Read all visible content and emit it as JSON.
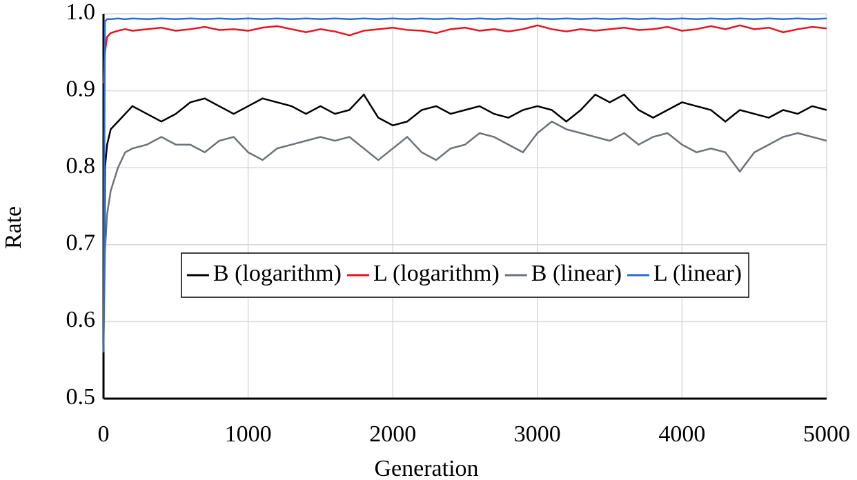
{
  "chart_data": {
    "type": "line",
    "x_label": "Generation",
    "y_label": "Rate",
    "x": [
      0,
      10,
      25,
      50,
      100,
      150,
      200,
      300,
      400,
      500,
      600,
      700,
      800,
      900,
      1000,
      1100,
      1200,
      1300,
      1400,
      1500,
      1600,
      1700,
      1800,
      1900,
      2000,
      2100,
      2200,
      2300,
      2400,
      2500,
      2600,
      2700,
      2800,
      2900,
      3000,
      3100,
      3200,
      3300,
      3400,
      3500,
      3600,
      3700,
      3800,
      3900,
      4000,
      4100,
      4200,
      4300,
      4400,
      4500,
      4600,
      4700,
      4800,
      4900,
      5000
    ],
    "series": [
      {
        "name": "B (logarithm)",
        "color": "#000000",
        "values": [
          0.56,
          0.8,
          0.83,
          0.85,
          0.86,
          0.87,
          0.88,
          0.87,
          0.86,
          0.87,
          0.885,
          0.89,
          0.88,
          0.87,
          0.88,
          0.89,
          0.885,
          0.88,
          0.87,
          0.88,
          0.87,
          0.875,
          0.895,
          0.865,
          0.855,
          0.86,
          0.875,
          0.88,
          0.87,
          0.875,
          0.88,
          0.87,
          0.865,
          0.875,
          0.88,
          0.875,
          0.86,
          0.875,
          0.895,
          0.885,
          0.895,
          0.875,
          0.865,
          0.875,
          0.885,
          0.88,
          0.875,
          0.86,
          0.875,
          0.87,
          0.865,
          0.875,
          0.87,
          0.88,
          0.875
        ]
      },
      {
        "name": "L (logarithm)",
        "color": "#e8141b",
        "values": [
          0.91,
          0.95,
          0.97,
          0.975,
          0.978,
          0.98,
          0.978,
          0.98,
          0.982,
          0.978,
          0.98,
          0.983,
          0.979,
          0.98,
          0.978,
          0.982,
          0.984,
          0.98,
          0.976,
          0.98,
          0.977,
          0.972,
          0.978,
          0.98,
          0.982,
          0.979,
          0.978,
          0.975,
          0.98,
          0.982,
          0.978,
          0.98,
          0.977,
          0.98,
          0.985,
          0.98,
          0.977,
          0.98,
          0.978,
          0.98,
          0.982,
          0.979,
          0.98,
          0.983,
          0.978,
          0.98,
          0.984,
          0.98,
          0.985,
          0.98,
          0.982,
          0.976,
          0.98,
          0.983,
          0.981
        ]
      },
      {
        "name": "B (linear)",
        "color": "#6d7178",
        "values": [
          0.56,
          0.69,
          0.74,
          0.77,
          0.8,
          0.82,
          0.825,
          0.83,
          0.84,
          0.83,
          0.83,
          0.82,
          0.835,
          0.84,
          0.82,
          0.81,
          0.825,
          0.83,
          0.835,
          0.84,
          0.835,
          0.84,
          0.825,
          0.81,
          0.825,
          0.84,
          0.82,
          0.81,
          0.825,
          0.83,
          0.845,
          0.84,
          0.83,
          0.82,
          0.845,
          0.86,
          0.85,
          0.845,
          0.84,
          0.835,
          0.845,
          0.83,
          0.84,
          0.845,
          0.83,
          0.82,
          0.825,
          0.82,
          0.795,
          0.82,
          0.83,
          0.84,
          0.845,
          0.84,
          0.835
        ]
      },
      {
        "name": "L (linear)",
        "color": "#2a6ed4",
        "values": [
          0.56,
          0.99,
          0.993,
          0.993,
          0.994,
          0.993,
          0.994,
          0.993,
          0.994,
          0.993,
          0.994,
          0.993,
          0.994,
          0.993,
          0.994,
          0.993,
          0.994,
          0.993,
          0.994,
          0.993,
          0.994,
          0.993,
          0.994,
          0.993,
          0.994,
          0.993,
          0.994,
          0.993,
          0.994,
          0.993,
          0.994,
          0.993,
          0.994,
          0.993,
          0.994,
          0.993,
          0.994,
          0.993,
          0.994,
          0.993,
          0.994,
          0.993,
          0.994,
          0.993,
          0.994,
          0.993,
          0.994,
          0.993,
          0.994,
          0.993,
          0.994,
          0.993,
          0.994,
          0.993,
          0.994
        ]
      }
    ],
    "xlim": [
      0,
      5000
    ],
    "xticks": [
      0,
      1000,
      2000,
      3000,
      4000,
      5000
    ],
    "ylim": [
      0.5,
      1
    ],
    "yticks": [
      0.5,
      0.6,
      0.7,
      0.8,
      0.9,
      {
        "value": 1,
        "label": "1.0"
      }
    ],
    "grid": true,
    "legend": "center"
  }
}
